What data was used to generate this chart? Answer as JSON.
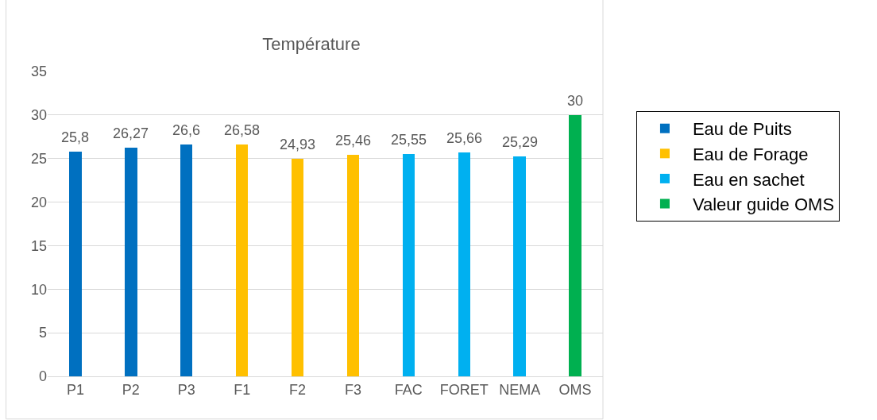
{
  "chart_data": {
    "type": "bar",
    "title": "Température",
    "categories": [
      "P1",
      "P2",
      "P3",
      "F1",
      "F2",
      "F3",
      "FAC",
      "FORET",
      "NEMA",
      "OMS"
    ],
    "series": [
      {
        "name": "Eau de Puits",
        "color": "#0070c0",
        "values": [
          25.8,
          26.27,
          26.6,
          null,
          null,
          null,
          null,
          null,
          null,
          null
        ],
        "value_labels": [
          "25,8",
          "26,27",
          "26,6",
          null,
          null,
          null,
          null,
          null,
          null,
          null
        ]
      },
      {
        "name": "Eau de Forage",
        "color": "#ffc000",
        "values": [
          null,
          null,
          null,
          26.58,
          24.93,
          25.46,
          null,
          null,
          null,
          null
        ],
        "value_labels": [
          null,
          null,
          null,
          "26,58",
          "24,93",
          "25,46",
          null,
          null,
          null,
          null
        ]
      },
      {
        "name": "Eau en sachet",
        "color": "#00b0f0",
        "values": [
          null,
          null,
          null,
          null,
          null,
          null,
          25.55,
          25.66,
          25.29,
          null
        ],
        "value_labels": [
          null,
          null,
          null,
          null,
          null,
          null,
          "25,55",
          "25,66",
          "25,29",
          null
        ]
      },
      {
        "name": "Valeur guide OMS",
        "color": "#00b050",
        "values": [
          null,
          null,
          null,
          null,
          null,
          null,
          null,
          null,
          null,
          30
        ],
        "value_labels": [
          null,
          null,
          null,
          null,
          null,
          null,
          null,
          null,
          null,
          "30"
        ]
      }
    ],
    "stacked": true,
    "ylim": [
      0,
      35
    ],
    "yticks": [
      0,
      5,
      10,
      15,
      20,
      25,
      30,
      35
    ],
    "grid": "y",
    "legend": "right"
  }
}
